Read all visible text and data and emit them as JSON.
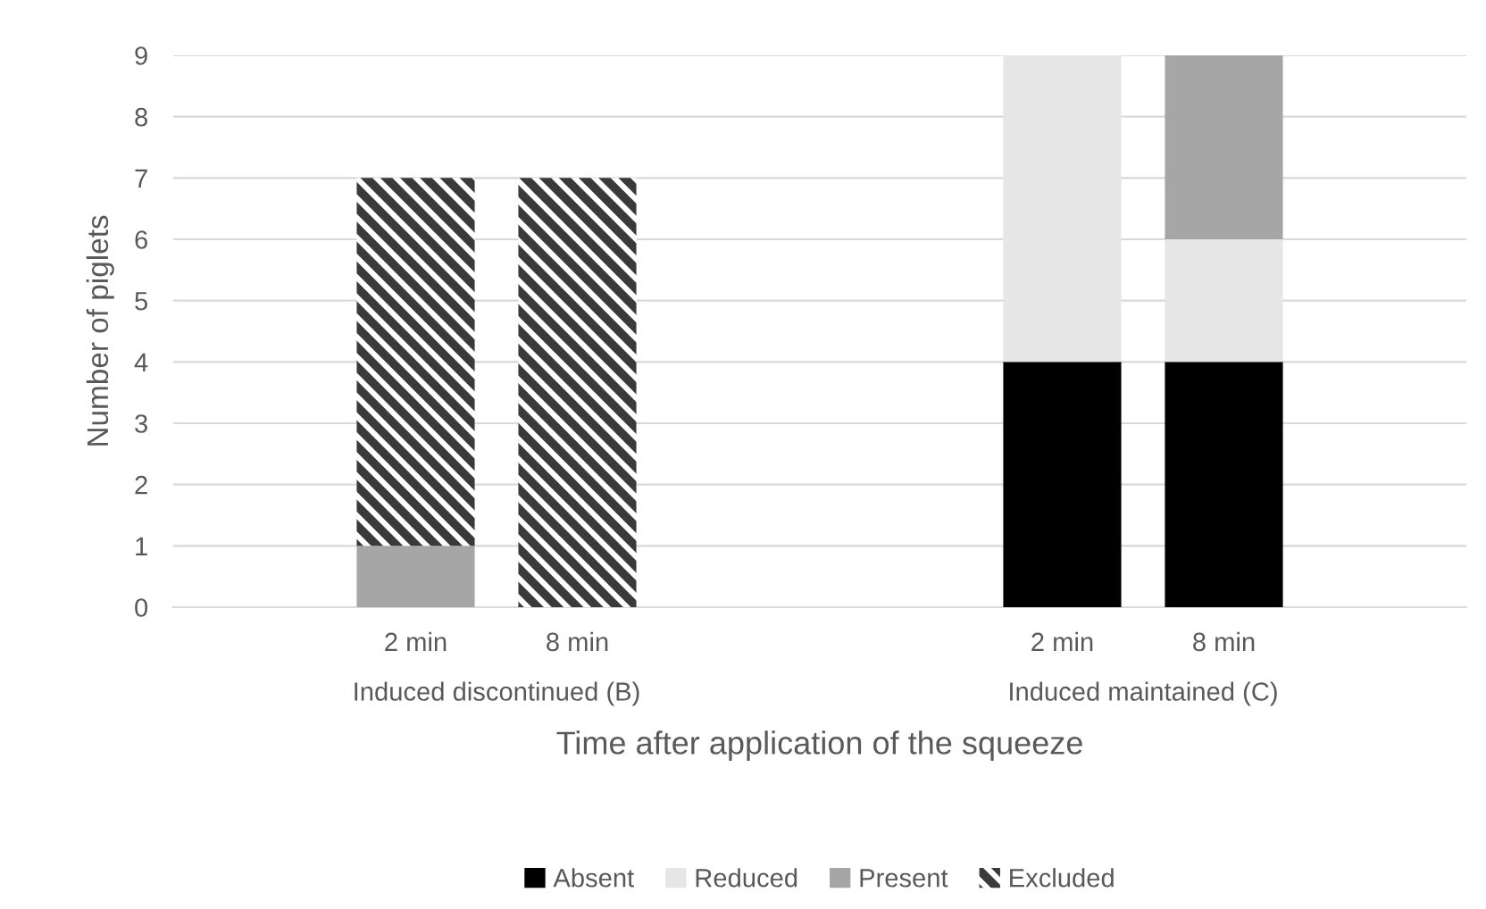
{
  "chart_data": {
    "type": "bar",
    "stacked": true,
    "xlabel": "Time after application of the squeeze",
    "ylabel": "Number of piglets",
    "categories": [
      null,
      "2 min",
      "8 min",
      null,
      null,
      "2 min",
      "8 min",
      null
    ],
    "annotations": [
      "Induced discontinued (B)",
      "Induced maintained (C)"
    ],
    "series": [
      {
        "name": "Absent",
        "color": "#000000",
        "values": [
          null,
          0,
          0,
          null,
          null,
          4,
          4,
          null
        ]
      },
      {
        "name": "Reduced",
        "color": "#e6e6e6",
        "values": [
          null,
          0,
          0,
          null,
          null,
          5,
          2,
          null
        ]
      },
      {
        "name": "Present",
        "color": "#a6a6a6",
        "values": [
          null,
          1,
          0,
          null,
          null,
          0,
          3,
          null
        ]
      },
      {
        "name": "Excluded",
        "color": "#3a3a3a",
        "values": [
          null,
          6,
          7,
          null,
          null,
          0,
          0,
          null
        ]
      }
    ],
    "ylim": [
      0,
      9
    ],
    "yticks": [
      0,
      1,
      2,
      3,
      4,
      5,
      6,
      7,
      8,
      9
    ],
    "grid": "y",
    "legend": "bottom"
  }
}
